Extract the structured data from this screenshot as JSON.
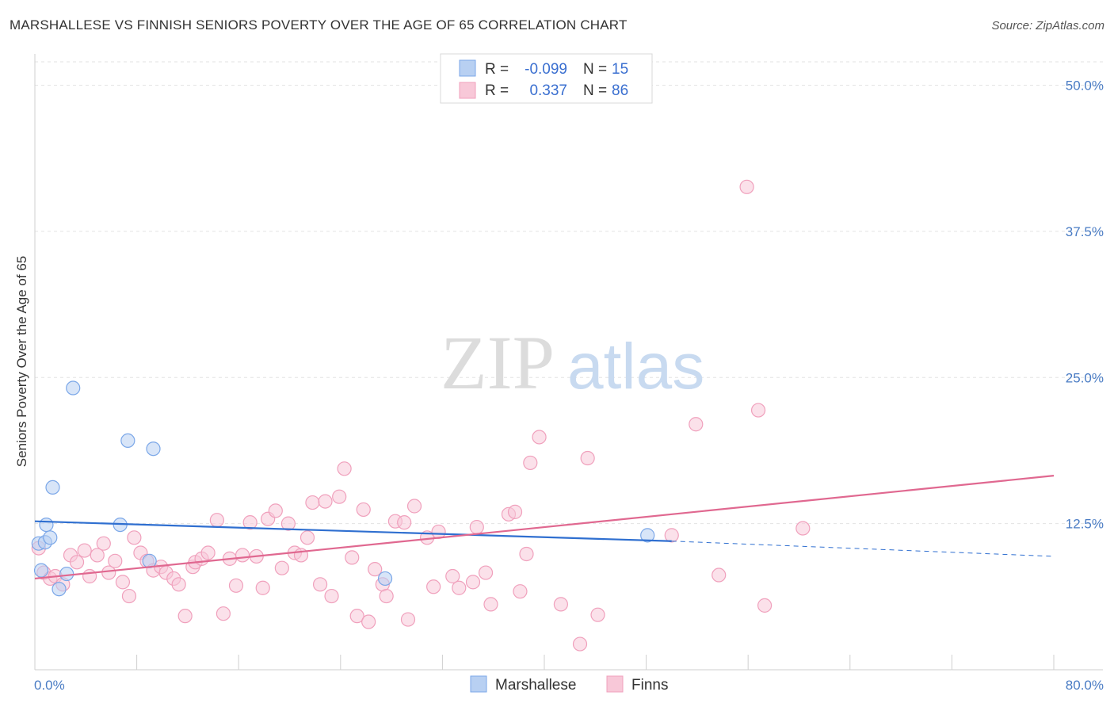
{
  "title": "MARSHALLESE VS FINNISH SENIORS POVERTY OVER THE AGE OF 65 CORRELATION CHART",
  "source": "Source: ZipAtlas.com",
  "watermark": {
    "zip": "ZIP",
    "atlas": "atlas"
  },
  "chart_data": {
    "type": "scatter",
    "xlabel": "",
    "ylabel": "Seniors Poverty Over the Age of 65",
    "xlim": [
      0,
      80
    ],
    "ylim": [
      0,
      52
    ],
    "x_tick_labels": {
      "left": "0.0%",
      "right": "80.0%"
    },
    "y_ticks": [
      {
        "value": 12.5,
        "label": "12.5%"
      },
      {
        "value": 25.0,
        "label": "25.0%"
      },
      {
        "value": 37.5,
        "label": "37.5%"
      },
      {
        "value": 50.0,
        "label": "50.0%"
      }
    ],
    "legend": {
      "rows": [
        {
          "r_label": "R =",
          "r_value": "-0.099",
          "n_label": "N =",
          "n_value": "15"
        },
        {
          "r_label": "R =",
          "r_value": "0.337",
          "n_label": "N =",
          "n_value": "86"
        }
      ]
    },
    "series": [
      {
        "name": "Marshallese",
        "color": "#7ba7e8",
        "fill": "#b8d0f2",
        "line_color": "#2f6fd0",
        "trend": {
          "x0": 0,
          "y0": 12.7,
          "x1": 50,
          "y1": 11.0,
          "dash_x1": 80,
          "dash_y1": 9.7
        },
        "points": [
          [
            0.3,
            10.8
          ],
          [
            0.5,
            8.5
          ],
          [
            0.8,
            10.9
          ],
          [
            0.9,
            12.4
          ],
          [
            1.2,
            11.3
          ],
          [
            1.4,
            15.6
          ],
          [
            1.9,
            6.9
          ],
          [
            2.5,
            8.2
          ],
          [
            3.0,
            24.1
          ],
          [
            6.7,
            12.4
          ],
          [
            7.3,
            19.6
          ],
          [
            9.0,
            9.3
          ],
          [
            9.3,
            18.9
          ],
          [
            27.5,
            7.8
          ],
          [
            48.1,
            11.5
          ]
        ]
      },
      {
        "name": "Finns",
        "color": "#f0a0bc",
        "fill": "#f8c8d8",
        "line_color": "#e06890",
        "trend": {
          "x0": 0,
          "y0": 7.8,
          "x1": 80,
          "y1": 16.6
        },
        "points": [
          [
            0.3,
            10.4
          ],
          [
            0.7,
            8.3
          ],
          [
            1.2,
            7.8
          ],
          [
            1.6,
            8.0
          ],
          [
            2.2,
            7.3
          ],
          [
            2.8,
            9.8
          ],
          [
            3.3,
            9.2
          ],
          [
            3.9,
            10.2
          ],
          [
            4.3,
            8.0
          ],
          [
            4.9,
            9.8
          ],
          [
            5.4,
            10.8
          ],
          [
            5.8,
            8.3
          ],
          [
            6.3,
            9.3
          ],
          [
            6.9,
            7.5
          ],
          [
            7.4,
            6.3
          ],
          [
            7.8,
            11.3
          ],
          [
            8.3,
            10.0
          ],
          [
            8.8,
            9.3
          ],
          [
            9.3,
            8.5
          ],
          [
            9.9,
            8.8
          ],
          [
            10.3,
            8.3
          ],
          [
            10.9,
            7.8
          ],
          [
            11.3,
            7.3
          ],
          [
            11.8,
            4.6
          ],
          [
            12.4,
            8.8
          ],
          [
            12.6,
            9.2
          ],
          [
            13.1,
            9.5
          ],
          [
            13.6,
            10.0
          ],
          [
            14.3,
            12.8
          ],
          [
            14.8,
            4.8
          ],
          [
            15.3,
            9.5
          ],
          [
            15.8,
            7.2
          ],
          [
            16.3,
            9.8
          ],
          [
            16.9,
            12.6
          ],
          [
            17.4,
            9.7
          ],
          [
            17.9,
            7.0
          ],
          [
            18.3,
            12.9
          ],
          [
            18.9,
            13.6
          ],
          [
            19.4,
            8.7
          ],
          [
            19.9,
            12.5
          ],
          [
            20.4,
            10.0
          ],
          [
            20.9,
            9.8
          ],
          [
            21.4,
            11.3
          ],
          [
            21.8,
            14.3
          ],
          [
            22.4,
            7.3
          ],
          [
            22.8,
            14.4
          ],
          [
            23.3,
            6.3
          ],
          [
            23.9,
            14.8
          ],
          [
            24.3,
            17.2
          ],
          [
            24.9,
            9.6
          ],
          [
            25.3,
            4.6
          ],
          [
            25.8,
            13.7
          ],
          [
            26.2,
            4.1
          ],
          [
            26.7,
            8.6
          ],
          [
            27.3,
            7.3
          ],
          [
            27.6,
            6.3
          ],
          [
            28.3,
            12.7
          ],
          [
            29.0,
            12.6
          ],
          [
            29.3,
            4.3
          ],
          [
            29.8,
            14.0
          ],
          [
            30.8,
            11.3
          ],
          [
            31.3,
            7.1
          ],
          [
            31.7,
            11.8
          ],
          [
            32.8,
            8.0
          ],
          [
            33.3,
            7.0
          ],
          [
            34.4,
            7.5
          ],
          [
            34.7,
            12.2
          ],
          [
            35.4,
            8.3
          ],
          [
            35.8,
            5.6
          ],
          [
            37.2,
            13.3
          ],
          [
            37.7,
            13.5
          ],
          [
            38.1,
            6.7
          ],
          [
            38.6,
            9.9
          ],
          [
            38.9,
            17.7
          ],
          [
            39.6,
            19.9
          ],
          [
            41.3,
            5.6
          ],
          [
            42.8,
            2.2
          ],
          [
            43.4,
            18.1
          ],
          [
            44.2,
            4.7
          ],
          [
            50.0,
            11.5
          ],
          [
            51.9,
            21.0
          ],
          [
            53.7,
            8.1
          ],
          [
            55.9,
            41.3
          ],
          [
            56.8,
            22.2
          ],
          [
            57.3,
            5.5
          ],
          [
            60.3,
            12.1
          ]
        ]
      }
    ]
  }
}
